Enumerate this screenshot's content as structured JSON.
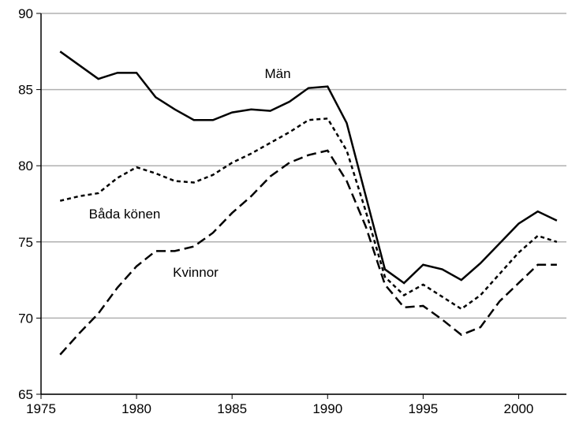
{
  "chart_data": {
    "type": "line",
    "x": [
      1976,
      1977,
      1978,
      1979,
      1980,
      1981,
      1982,
      1983,
      1984,
      1985,
      1986,
      1987,
      1988,
      1989,
      1990,
      1991,
      1992,
      1993,
      1994,
      1995,
      1996,
      1997,
      1998,
      1999,
      2000,
      2001,
      2002
    ],
    "series": [
      {
        "name": "Män",
        "color": "#000000",
        "style": "solid",
        "values": [
          87.5,
          86.6,
          85.7,
          86.1,
          86.1,
          84.5,
          83.7,
          83.0,
          83.0,
          83.5,
          83.7,
          83.6,
          84.2,
          85.1,
          85.2,
          82.8,
          78.0,
          73.2,
          72.3,
          73.5,
          73.2,
          72.5,
          73.6,
          74.9,
          76.2,
          77.0,
          76.4
        ]
      },
      {
        "name": "Båda könen",
        "color": "#000000",
        "style": "dotted",
        "values": [
          77.7,
          78.0,
          78.2,
          79.2,
          79.9,
          79.5,
          79.0,
          78.9,
          79.4,
          80.2,
          80.8,
          81.5,
          82.2,
          83.0,
          83.1,
          81.0,
          77.0,
          72.7,
          71.5,
          72.2,
          71.4,
          70.6,
          71.5,
          72.9,
          74.3,
          75.4,
          75.0
        ]
      },
      {
        "name": "Kvinnor",
        "color": "#000000",
        "style": "dashed",
        "values": [
          67.6,
          69.0,
          70.3,
          72.0,
          73.4,
          74.4,
          74.4,
          74.7,
          75.6,
          76.9,
          78.0,
          79.3,
          80.2,
          80.7,
          81.0,
          79.0,
          76.0,
          72.2,
          70.7,
          70.8,
          69.9,
          68.9,
          69.4,
          71.1,
          72.3,
          73.5,
          73.5
        ]
      }
    ],
    "xlim": [
      1975,
      2002.5
    ],
    "xticks": [
      1975,
      1980,
      1985,
      1990,
      1995,
      2000
    ],
    "ylim": [
      65,
      90
    ],
    "yticks": [
      65,
      70,
      75,
      80,
      85,
      90
    ],
    "grid": true
  }
}
